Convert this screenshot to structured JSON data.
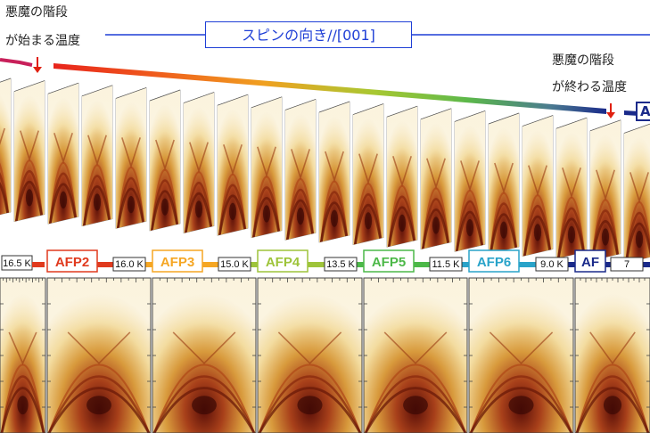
{
  "header": {
    "start_note_line1": "悪魔の階段",
    "start_note_line2": "が始まる温度",
    "end_note_line1": "悪魔の階段",
    "end_note_line2": "が終わる温度",
    "title": "スピンの向き//[001]",
    "corner_tag": "A"
  },
  "phases": [
    {
      "name": "AFP2",
      "color": "#e03a1e",
      "temperature": "16.0 K"
    },
    {
      "name": "AFP3",
      "color": "#f5a623",
      "temperature": "15.0 K"
    },
    {
      "name": "AFP4",
      "color": "#9ec43a",
      "temperature": "13.5 K"
    },
    {
      "name": "AFP5",
      "color": "#4cb848",
      "temperature": "11.5 K"
    },
    {
      "name": "AFP6",
      "color": "#29a3c9",
      "temperature": "9.0 K"
    },
    {
      "name": "AF",
      "color": "#1a2a8a",
      "temperature": "7"
    }
  ],
  "first_temperature": "16.5 K",
  "colors": {
    "accent_blue": "#1f3fd6",
    "arrow_red": "#e02010"
  },
  "icons": {
    "start_marker": "arrow-down-icon",
    "end_marker": "arrow-down-icon"
  }
}
